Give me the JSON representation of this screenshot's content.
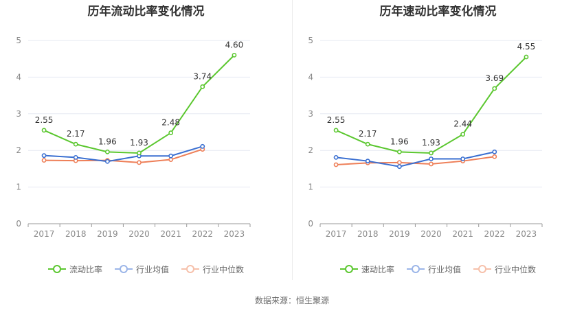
{
  "source": "数据来源：恒生聚源",
  "colors": {
    "company": "#5bc72f",
    "industry_avg": "#3a6fd1",
    "industry_median": "#ee7f58"
  },
  "chart_data": [
    {
      "type": "line",
      "title": "历年流动比率变化情况",
      "categories": [
        "2017",
        "2018",
        "2019",
        "2020",
        "2021",
        "2022",
        "2023"
      ],
      "ylim": [
        0,
        5
      ],
      "yticks": [
        "0",
        "1",
        "2",
        "3",
        "4",
        "5"
      ],
      "grid": true,
      "legend_position": "bottom",
      "series": [
        {
          "name": "流动比率",
          "key": "company",
          "values": [
            2.55,
            2.17,
            1.96,
            1.93,
            2.48,
            3.74,
            4.6
          ],
          "labels": [
            "2.55",
            "2.17",
            "1.96",
            "1.93",
            "2.48",
            "3.74",
            "4.60"
          ]
        },
        {
          "name": "行业均值",
          "key": "industry_avg",
          "values": [
            1.86,
            1.81,
            1.7,
            1.85,
            1.85,
            2.11,
            null
          ]
        },
        {
          "name": "行业中位数",
          "key": "industry_median",
          "values": [
            1.73,
            1.72,
            1.73,
            1.67,
            1.75,
            2.03,
            null
          ]
        }
      ]
    },
    {
      "type": "line",
      "title": "历年速动比率变化情况",
      "categories": [
        "2017",
        "2018",
        "2019",
        "2020",
        "2021",
        "2022",
        "2023"
      ],
      "ylim": [
        0,
        5
      ],
      "yticks": [
        "0",
        "1",
        "2",
        "3",
        "4",
        "5"
      ],
      "grid": true,
      "legend_position": "bottom",
      "series": [
        {
          "name": "速动比率",
          "key": "company",
          "values": [
            2.55,
            2.17,
            1.96,
            1.93,
            2.44,
            3.69,
            4.55
          ],
          "labels": [
            "2.55",
            "2.17",
            "1.96",
            "1.93",
            "2.44",
            "3.69",
            "4.55"
          ]
        },
        {
          "name": "行业均值",
          "key": "industry_avg",
          "values": [
            1.81,
            1.71,
            1.56,
            1.77,
            1.77,
            1.96,
            null
          ]
        },
        {
          "name": "行业中位数",
          "key": "industry_median",
          "values": [
            1.61,
            1.66,
            1.67,
            1.63,
            1.71,
            1.83,
            null
          ]
        }
      ]
    }
  ]
}
